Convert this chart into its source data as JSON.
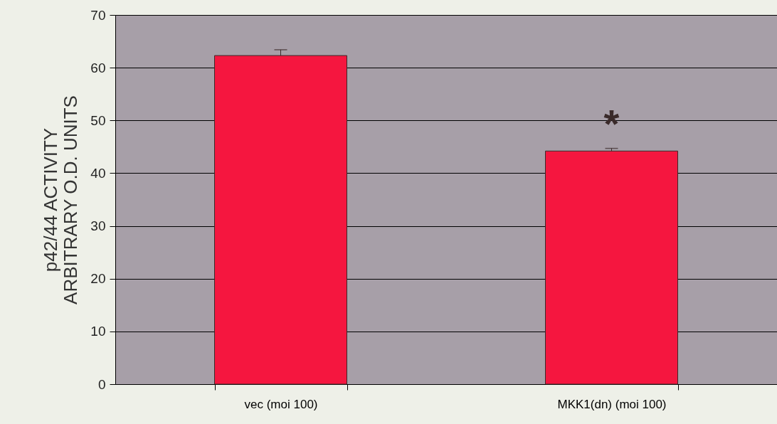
{
  "chart_data": {
    "type": "bar",
    "ylabel": "p42/44  ACTIVITY\nARBITRARY O.D. UNITS",
    "categories": [
      "vec (moi 100)",
      "MKK1(dn) (moi 100)"
    ],
    "values": [
      62.3,
      44.2
    ],
    "errors": [
      [
        62.3,
        63.4
      ],
      [
        44.2,
        44.7
      ]
    ],
    "color": "#f5163f",
    "ylim": [
      0,
      70
    ],
    "yticks": [
      0,
      10,
      20,
      30,
      40,
      50,
      60,
      70
    ],
    "grid": "y",
    "annotations": [
      "*"
    ]
  }
}
